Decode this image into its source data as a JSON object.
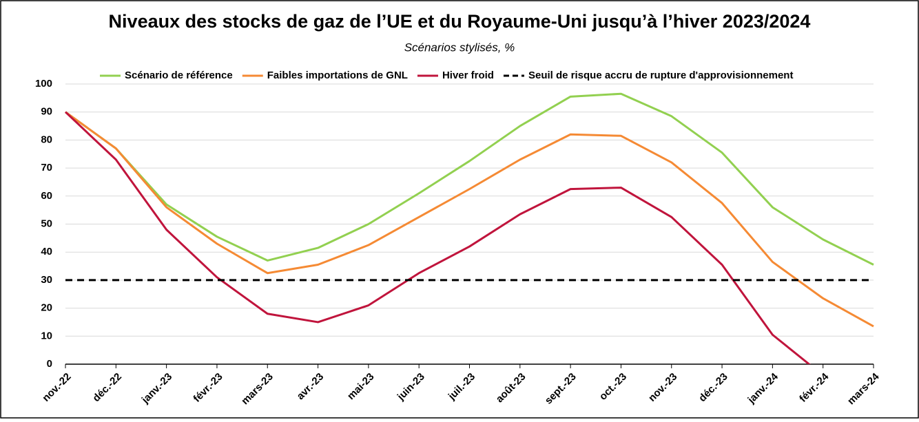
{
  "chart_data": {
    "type": "line",
    "title": "Niveaux des stocks de gaz de l’UE et du Royaume-Uni jusqu’à l’hiver 2023/2024",
    "subtitle": "Scénarios stylisés, %",
    "categories": [
      "nov.-22",
      "déc.-22",
      "janv.-23",
      "févr.-23",
      "mars-23",
      "avr.-23",
      "mai-23",
      "juin-23",
      "juil.-23",
      "août-23",
      "sept.-23",
      "oct.-23",
      "nov.-23",
      "déc.-23",
      "janv.-24",
      "févr.-24",
      "mars-24"
    ],
    "series": [
      {
        "name": "Scénario de référence",
        "color": "#92d050",
        "values": [
          90,
          77,
          57,
          45.5,
          37,
          41.5,
          50,
          61,
          72.5,
          85,
          95.5,
          96.5,
          88.5,
          75.5,
          56,
          44.5,
          35.5
        ]
      },
      {
        "name": "Faibles importations de GNL",
        "color": "#f58a34",
        "values": [
          90,
          77,
          56,
          43,
          32.5,
          35.5,
          42.5,
          52.5,
          62.5,
          73,
          82,
          81.5,
          72,
          57.5,
          36.5,
          23.5,
          13.5
        ]
      },
      {
        "name": "Hiver froid",
        "color": "#c0143c",
        "values": [
          90,
          73,
          48,
          31,
          18,
          15,
          21,
          32.5,
          42,
          53.5,
          62.5,
          63,
          52.5,
          35.5,
          10.5,
          -4,
          null
        ]
      },
      {
        "name": "Seuil de risque accru de rupture d'approvisionnement",
        "color": "#000000",
        "dash": "dashed",
        "values": [
          30,
          30,
          30,
          30,
          30,
          30,
          30,
          30,
          30,
          30,
          30,
          30,
          30,
          30,
          30,
          30,
          30
        ]
      }
    ],
    "ylim": [
      0,
      100
    ],
    "yticks": [
      0,
      10,
      20,
      30,
      40,
      50,
      60,
      70,
      80,
      90,
      100
    ],
    "grid": true,
    "legend": "top"
  }
}
